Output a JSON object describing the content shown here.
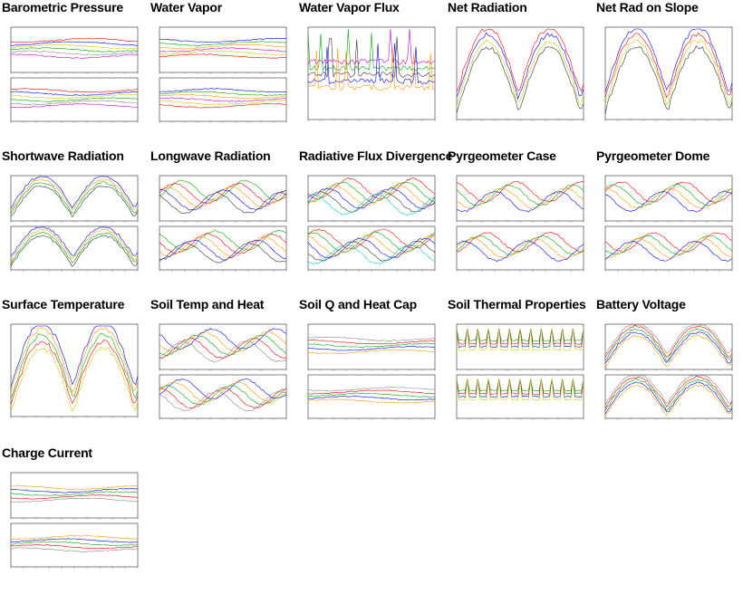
{
  "page": {
    "background": "#ffffff"
  },
  "panels": [
    {
      "title": "Barometric Pressure",
      "subplots": 2,
      "series_colors": [
        "#ff0000",
        "#0000ff",
        "#cccc00",
        "#00aa00",
        "#888888",
        "#cc00cc"
      ]
    },
    {
      "title": "Water Vapor",
      "subplots": 2,
      "series_colors": [
        "#0000ff",
        "#00aa00",
        "#ff9900",
        "#cc00cc",
        "#cccc00",
        "#ff0000"
      ]
    },
    {
      "title": "Water Vapor Flux",
      "subplots": 1,
      "series_colors": [
        "#cc00cc",
        "#00aa00",
        "#333333",
        "#0000ff",
        "#ff9900"
      ]
    },
    {
      "title": "Net Radiation",
      "subplots": 1,
      "series_colors": [
        "#ff0000",
        "#0000ff",
        "#cccc00",
        "#333333"
      ]
    },
    {
      "title": "Net Rad on Slope",
      "subplots": 1,
      "series_colors": [
        "#0000ff",
        "#ff0000",
        "#cccc00",
        "#333333"
      ]
    },
    {
      "title": "Shortwave Radiation",
      "subplots": 2,
      "series_colors": [
        "#0000ff",
        "#ff9900",
        "#00aa00",
        "#333333"
      ]
    },
    {
      "title": "Longwave Radiation",
      "subplots": 2,
      "series_colors": [
        "#00aa00",
        "#ff0000",
        "#ff9900",
        "#0000ff",
        "#333333"
      ]
    },
    {
      "title": "Radiative Flux Divergence",
      "subplots": 2,
      "series_colors": [
        "#ff0000",
        "#00aa00",
        "#ff9900",
        "#0000ff",
        "#333333",
        "#00cccc"
      ]
    },
    {
      "title": "Pyrgeometer Case",
      "subplots": 2,
      "series_colors": [
        "#ff0000",
        "#00aa00",
        "#ff9900",
        "#0000ff"
      ]
    },
    {
      "title": "Pyrgeometer Dome",
      "subplots": 2,
      "series_colors": [
        "#ff0000",
        "#00aa00",
        "#ff9900",
        "#0000ff"
      ]
    },
    {
      "title": "Surface Temperature",
      "subplots": 1,
      "series_colors": [
        "#0000ff",
        "#ff9900",
        "#00aa00",
        "#ff0000",
        "#cccc00"
      ]
    },
    {
      "title": "Soil Temp and Heat",
      "subplots": 2,
      "series_colors": [
        "#0000ff",
        "#ff9900",
        "#00aa00",
        "#ff0000",
        "#888888"
      ]
    },
    {
      "title": "Soil Q and Heat Cap",
      "subplots": 2,
      "series_colors": [
        "#888888",
        "#ff0000",
        "#00aa00",
        "#0000ff",
        "#ff9900"
      ]
    },
    {
      "title": "Soil Thermal Properties",
      "subplots": 2,
      "series_colors": [
        "#00aa00",
        "#ff0000",
        "#0000ff",
        "#cccc00"
      ]
    },
    {
      "title": "Battery Voltage",
      "subplots": 2,
      "series_colors": [
        "#888888",
        "#ff0000",
        "#00aa00",
        "#0000ff",
        "#ff9900"
      ]
    },
    {
      "title": "Charge Current",
      "subplots": 2,
      "series_colors": [
        "#ff9900",
        "#0000ff",
        "#00aa00",
        "#ff0000",
        "#888888"
      ]
    }
  ],
  "chart_data": [
    {
      "type": "line",
      "title": "Barometric Pressure"
    },
    {
      "type": "line",
      "title": "Water Vapor"
    },
    {
      "type": "line",
      "title": "Water Vapor Flux"
    },
    {
      "type": "line",
      "title": "Net Radiation"
    },
    {
      "type": "line",
      "title": "Net Rad on Slope"
    },
    {
      "type": "line",
      "title": "Shortwave Radiation"
    },
    {
      "type": "line",
      "title": "Longwave Radiation"
    },
    {
      "type": "line",
      "title": "Radiative Flux Divergence"
    },
    {
      "type": "line",
      "title": "Pyrgeometer Case"
    },
    {
      "type": "line",
      "title": "Pyrgeometer Dome"
    },
    {
      "type": "line",
      "title": "Surface Temperature"
    },
    {
      "type": "line",
      "title": "Soil Temp and Heat"
    },
    {
      "type": "line",
      "title": "Soil Q and Heat Cap"
    },
    {
      "type": "line",
      "title": "Soil Thermal Properties"
    },
    {
      "type": "line",
      "title": "Battery Voltage"
    },
    {
      "type": "line",
      "title": "Charge Current"
    }
  ]
}
